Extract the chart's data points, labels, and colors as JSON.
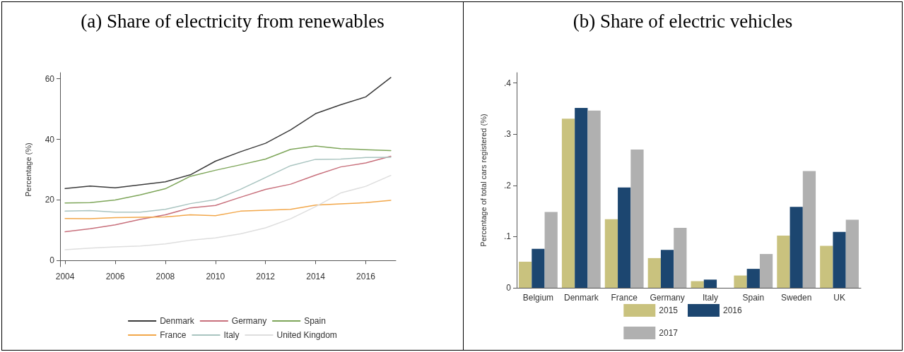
{
  "chart_data": [
    {
      "type": "line",
      "title": "(a) Share of electricity from renewables",
      "ylabel": "Percentage (%)",
      "x": [
        2004,
        2005,
        2006,
        2007,
        2008,
        2009,
        2010,
        2011,
        2012,
        2013,
        2014,
        2015,
        2016,
        2017
      ],
      "xlim": [
        2003.8,
        2017.2
      ],
      "xticks": [
        2004,
        2006,
        2008,
        2010,
        2012,
        2014,
        2016
      ],
      "ylim": [
        -2,
        62
      ],
      "yticks": [
        0,
        20,
        40,
        60
      ],
      "grid": false,
      "legend": "bottom",
      "marker": "none",
      "line_style": "solid",
      "series": [
        {
          "name": "Denmark",
          "color": "#3a3a3a",
          "values": [
            23.8,
            24.6,
            24.0,
            25.0,
            26.0,
            28.3,
            32.8,
            35.9,
            38.7,
            43.1,
            48.5,
            51.4,
            54.0,
            60.4
          ]
        },
        {
          "name": "Germany",
          "color": "#c8707c",
          "values": [
            9.5,
            10.5,
            11.8,
            13.6,
            15.1,
            17.4,
            18.2,
            20.9,
            23.5,
            25.2,
            28.2,
            30.9,
            32.2,
            34.4
          ]
        },
        {
          "name": "Spain",
          "color": "#7ea65a",
          "values": [
            19.0,
            19.1,
            20.0,
            21.7,
            23.7,
            27.8,
            29.8,
            31.6,
            33.5,
            36.7,
            37.8,
            36.9,
            36.6,
            36.3
          ]
        },
        {
          "name": "France",
          "color": "#f2a74a",
          "values": [
            13.9,
            13.8,
            14.2,
            14.3,
            14.4,
            15.1,
            14.8,
            16.3,
            16.6,
            16.9,
            18.3,
            18.7,
            19.1,
            19.9
          ]
        },
        {
          "name": "Italy",
          "color": "#a9c4c0",
          "values": [
            16.3,
            16.5,
            16.0,
            16.0,
            16.9,
            18.8,
            20.1,
            23.5,
            27.4,
            31.3,
            33.4,
            33.5,
            34.0,
            34.1
          ]
        },
        {
          "name": "United Kingdom",
          "color": "#dedede",
          "values": [
            3.6,
            4.1,
            4.5,
            4.8,
            5.5,
            6.7,
            7.5,
            8.8,
            10.8,
            13.8,
            17.8,
            22.3,
            24.5,
            28.1
          ]
        }
      ]
    },
    {
      "type": "bar",
      "title": "(b) Share of electric vehicles",
      "ylabel": "Percentage of total cars registered (%)",
      "categories": [
        "Belgium",
        "Denmark",
        "France",
        "Germany",
        "Italy",
        "Spain",
        "Sweden",
        "UK"
      ],
      "ylim": [
        0,
        0.42
      ],
      "yticks": [
        0,
        {
          "value": 0.1,
          "label": ".1"
        },
        {
          "value": 0.2,
          "label": ".2"
        },
        {
          "value": 0.3,
          "label": ".3"
        },
        {
          "value": 0.4,
          "label": ".4"
        }
      ],
      "grid": false,
      "legend": "bottom",
      "series": [
        {
          "name": "2015",
          "color": "#c9c27e",
          "values": [
            0.051,
            0.33,
            0.134,
            0.058,
            0.013,
            0.024,
            0.102,
            0.082
          ]
        },
        {
          "name": "2016",
          "color": "#1c4670",
          "values": [
            0.076,
            0.351,
            0.196,
            0.074,
            0.016,
            0.037,
            0.158,
            0.109
          ]
        },
        {
          "name": "2017",
          "color": "#b0b0b0",
          "values": [
            0.148,
            0.346,
            0.27,
            0.117,
            null,
            0.066,
            0.228,
            0.133
          ]
        }
      ]
    }
  ]
}
